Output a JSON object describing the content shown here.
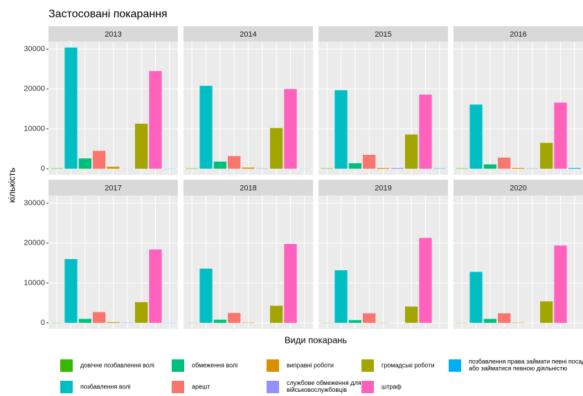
{
  "chart_data": {
    "type": "bar",
    "title": "Застосовані покарання",
    "xlabel": "Види покарань",
    "ylabel": "кількість",
    "facets": [
      "2013",
      "2014",
      "2015",
      "2016",
      "2017",
      "2018",
      "2019",
      "2020"
    ],
    "ylim": [
      -1520,
      31920
    ],
    "yticks": [
      0,
      10000,
      20000,
      30000
    ],
    "grid": true,
    "series": [
      {
        "name": "довічне позбавлення волі",
        "color": "#39B600",
        "values": [
          100,
          100,
          100,
          100,
          50,
          50,
          50,
          50
        ]
      },
      {
        "name": "позбавлення волі",
        "color": "#00BFC4",
        "values": [
          30400,
          20800,
          19700,
          16100,
          16000,
          13600,
          13200,
          12800
        ]
      },
      {
        "name": "обмеження волі",
        "color": "#00BF7D",
        "values": [
          2600,
          1800,
          1400,
          1100,
          1000,
          800,
          700,
          1000
        ]
      },
      {
        "name": "арешт",
        "color": "#F8766D",
        "values": [
          4500,
          3200,
          3500,
          2800,
          2700,
          2500,
          2400,
          2400
        ]
      },
      {
        "name": "виправні роботи",
        "color": "#D89000",
        "values": [
          500,
          300,
          200,
          200,
          200,
          100,
          50,
          100
        ]
      },
      {
        "name": "службове обмеження для військовослужбовців",
        "color": "#9590FF",
        "values": [
          50,
          100,
          200,
          100,
          100,
          0,
          0,
          0
        ]
      },
      {
        "name": "громадські роботи",
        "color": "#A3A500",
        "values": [
          11300,
          10200,
          8600,
          6500,
          5200,
          4300,
          4100,
          5400
        ]
      },
      {
        "name": "штраф",
        "color": "#FF62BC",
        "values": [
          24500,
          20000,
          18600,
          16600,
          18400,
          19800,
          21300,
          19400
        ]
      },
      {
        "name": "позбавлення права займати певні посади або займатися певною діяльністю",
        "color": "#00B0F6",
        "values": [
          50,
          50,
          100,
          200,
          50,
          0,
          0,
          0
        ]
      }
    ]
  }
}
